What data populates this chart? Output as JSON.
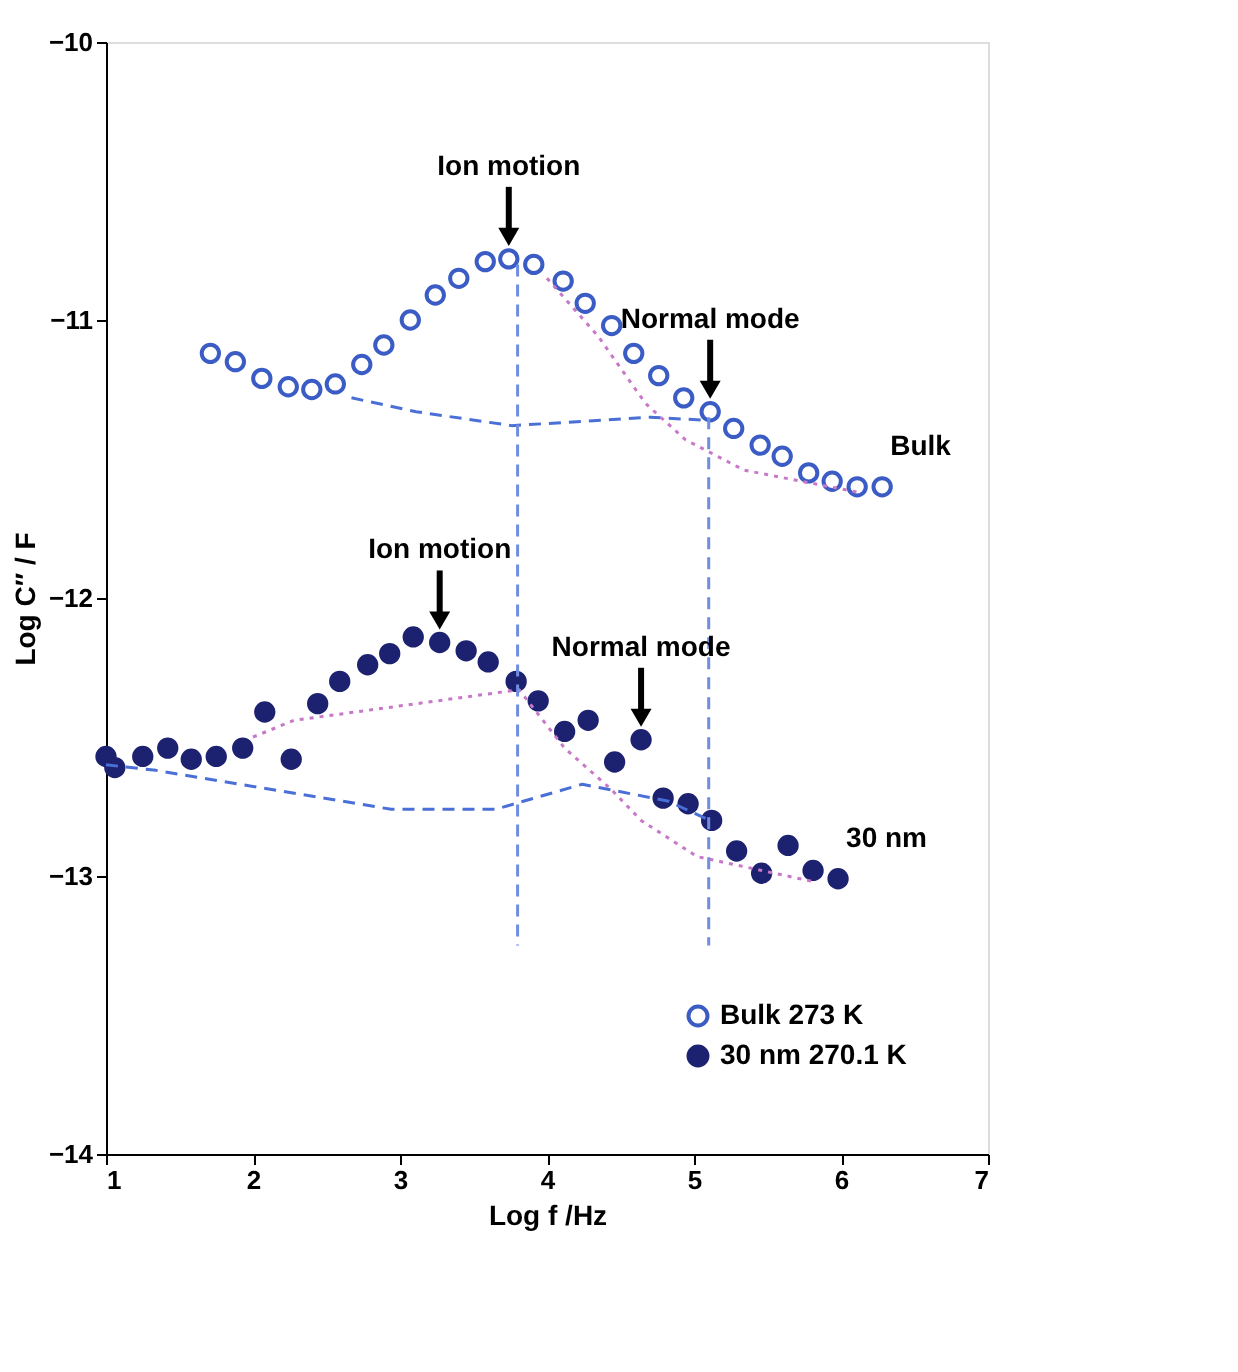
{
  "chart_data": {
    "type": "scatter",
    "xlabel": "Log f /Hz",
    "ylabel": "Log C″ / F",
    "xlim": [
      1,
      7
    ],
    "xticks": [
      1,
      2,
      3,
      4,
      5,
      6,
      7
    ],
    "ylim": [
      -14,
      -10
    ],
    "yticks": [
      -14,
      -13,
      -12,
      -11,
      -10
    ],
    "grid": false,
    "legend": "bottom right",
    "series": [
      {
        "name": "Bulk 273 K",
        "color": "#3a5cc4",
        "marker": "circle",
        "x": [
          1.71,
          1.88,
          2.06,
          2.24,
          2.4,
          2.56,
          2.74,
          2.89,
          3.07,
          3.24,
          3.4,
          3.58,
          3.74,
          3.91,
          4.11,
          4.26,
          4.44,
          4.59,
          4.76,
          4.93,
          5.11,
          5.27,
          5.45,
          5.6,
          5.78,
          5.94,
          6.11,
          6.28
        ],
        "values": [
          -11.12,
          -11.15,
          -11.21,
          -11.24,
          -11.25,
          -11.23,
          -11.16,
          -11.09,
          -11.0,
          -10.91,
          -10.85,
          -10.79,
          -10.78,
          -10.8,
          -10.86,
          -10.94,
          -11.02,
          -11.12,
          -11.2,
          -11.28,
          -11.33,
          -11.39,
          -11.45,
          -11.49,
          -11.55,
          -11.58,
          -11.6,
          -11.6
        ]
      },
      {
        "name": "30 nm 270.1 K",
        "color": "#1c2170",
        "marker": "circle",
        "x": [
          1.0,
          1.06,
          1.25,
          1.42,
          1.58,
          1.75,
          1.93,
          2.08,
          2.26,
          2.44,
          2.59,
          2.78,
          2.93,
          3.09,
          3.27,
          3.45,
          3.6,
          3.79,
          3.94,
          4.12,
          4.28,
          4.46,
          4.64,
          4.79,
          4.96,
          5.12,
          5.29,
          5.46,
          5.64,
          5.81,
          5.98
        ],
        "values": [
          -12.57,
          -12.61,
          -12.57,
          -12.54,
          -12.58,
          -12.57,
          -12.54,
          -12.41,
          -12.58,
          -12.38,
          -12.3,
          -12.24,
          -12.2,
          -12.14,
          -12.16,
          -12.19,
          -12.23,
          -12.3,
          -12.37,
          -12.48,
          -12.44,
          -12.59,
          -12.51,
          -12.72,
          -12.74,
          -12.8,
          -12.91,
          -12.99,
          -12.89,
          -12.98,
          -13.01
        ]
      },
      {
        "type": "line",
        "color": "#4a6fd6",
        "line_style": "dashed",
        "x": [
          2.67,
          3.11,
          3.76,
          4.7,
          5.06
        ],
        "values": [
          -11.28,
          -11.33,
          -11.38,
          -11.35,
          -11.36
        ]
      },
      {
        "type": "line",
        "color": "#c878c8",
        "line_style": "dotted",
        "x": [
          4.0,
          4.35,
          4.67,
          4.94,
          5.34,
          6.12
        ],
        "values": [
          -10.85,
          -11.06,
          -11.3,
          -11.43,
          -11.54,
          -11.62
        ]
      },
      {
        "type": "line",
        "color": "#4a6fd6",
        "line_style": "dashed",
        "x": [
          1.0,
          1.34,
          2.94,
          3.65,
          4.24,
          4.82,
          5.11
        ],
        "values": [
          -12.6,
          -12.62,
          -12.76,
          -12.76,
          -12.67,
          -12.73,
          -12.8
        ]
      },
      {
        "type": "line",
        "color": "#c878c8",
        "line_style": "dotted",
        "x": [
          2.0,
          2.28,
          3.81,
          4.12,
          4.44,
          4.64,
          5.02,
          5.81
        ],
        "values": [
          -12.5,
          -12.44,
          -12.33,
          -12.54,
          -12.69,
          -12.8,
          -12.93,
          -13.02
        ]
      },
      {
        "type": "line",
        "color": "#6f8ee0",
        "line_style": "dashed",
        "x": [
          3.8,
          3.8
        ],
        "values": [
          -10.8,
          -13.25
        ]
      },
      {
        "type": "line",
        "color": "#6f8ee0",
        "line_style": "dashed",
        "x": [
          5.1,
          5.1
        ],
        "values": [
          -11.35,
          -13.25
        ]
      }
    ],
    "annotations": [
      {
        "text": "Ion motion",
        "x": 3.74,
        "y": -10.78
      },
      {
        "text": "Normal mode",
        "x": 5.11,
        "y": -11.33
      },
      {
        "text": "Ion motion",
        "x": 3.27,
        "y": -12.16
      },
      {
        "text": "Normal mode",
        "x": 4.64,
        "y": -12.51
      },
      "Bulk",
      "30 nm"
    ]
  }
}
